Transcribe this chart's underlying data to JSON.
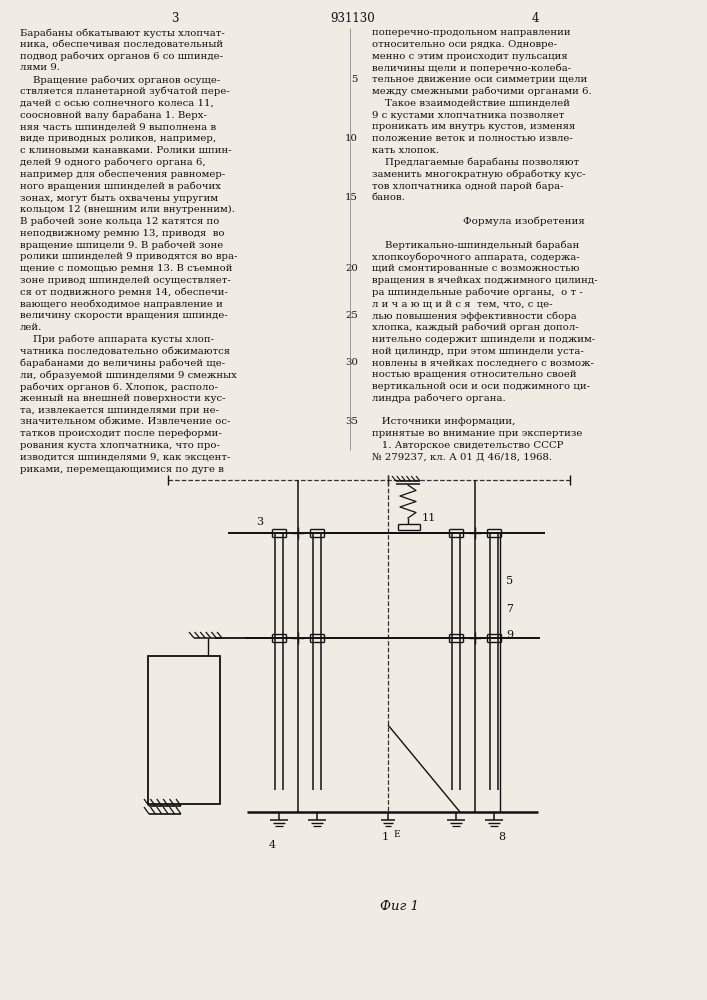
{
  "bg_color": "#f0ece4",
  "text_color": "#1a1a1a",
  "title_patent": "931130",
  "col_left_header": "3",
  "col_right_header": "4",
  "left_text": [
    "Барабаны обкатывают кусты хлопчат-",
    "ника, обеспечивая последовательный",
    "подвод рабочих органов 6 со шпинде-",
    "лями 9.",
    "    Вращение рабочих органов осуще-",
    "ствляется планетарной зубчатой пере-",
    "дачей с осью солнечного колеса 11,",
    "соосновной валу барабана 1. Верх-",
    "няя часть шпинделей 9 выполнена в",
    "виде приводных роликов, например,",
    "с клиновыми канавками. Ролики шпин-",
    "делей 9 одного рабочего органа 6,",
    "например для обеспечения равномер-",
    "ного вращения шпинделей в рабочих",
    "зонах, могут быть охвачены упругим",
    "кольцом 12 (внешним или внутренним).",
    "В рабочей зоне кольца 12 катятся по",
    "неподвижному ремню 13, приводя  во",
    "вращение шпицели 9. В рабочей зоне",
    "ролики шпинделей 9 приводятся во вра-",
    "щение с помощью ремня 13. В съемной",
    "зоне привод шпинделей осуществляет-",
    "ся от подвижного ремня 14, обеспечи-",
    "вающего необходимое направление и",
    "величину скорости вращения шпинде-",
    "лей.",
    "    При работе аппарата кусты хлоп-",
    "чатника последовательно обжимаются",
    "барабанами до величины рабочей ще-",
    "ли, образуемой шпинделями 9 смежных",
    "рабочих органов 6. Хлопок, располо-",
    "женный на внешней поверхности кус-",
    "та, извлекается шпинделями при не-",
    "значительном обжиме. Извлечение ос-",
    "татков происходит после переформи-",
    "рования куста хлопчатника, что про-",
    "изводится шпинделями 9, как эксцент-",
    "риками, перемещающимися по дуге в"
  ],
  "right_text_lines": [
    [
      "",
      "поперечно-продольном направлении"
    ],
    [
      "",
      "относительно оси рядка. Одновре-"
    ],
    [
      "",
      "менно с этим происходит пульсация"
    ],
    [
      "",
      "величины щели и поперечно-колеба-"
    ],
    [
      "5",
      "тельное движение оси симметрии щели"
    ],
    [
      "",
      "между смежными рабочими органами 6."
    ],
    [
      "",
      "    Такое взаимодействие шпинделей"
    ],
    [
      "",
      "9 с кустами хлопчатника позволяет"
    ],
    [
      "",
      "проникать им внутрь кустов, изменяя"
    ],
    [
      "10",
      "положение веток и полностью извле-"
    ],
    [
      "",
      "кать хлопок."
    ],
    [
      "",
      "    Предлагаемые барабаны позволяют"
    ],
    [
      "",
      "заменить многократную обработку кус-"
    ],
    [
      "",
      "тов хлопчатника одной парой бара-"
    ],
    [
      "15",
      "банов."
    ],
    [
      "",
      ""
    ],
    [
      "",
      "Формула изобретения"
    ],
    [
      "",
      ""
    ],
    [
      "",
      "    Вертикально-шпиндельный барабан"
    ],
    [
      "",
      "хлопкоуборочного аппарата, содержа-"
    ],
    [
      "20",
      "щий смонтированные с возможностью"
    ],
    [
      "",
      "вращения в ячейках поджимного цилинд-"
    ],
    [
      "",
      "ра шпиндельные рабочие органы,  о т -"
    ],
    [
      "",
      "л и ч а ю щ и й с я  тем, что, с це-"
    ],
    [
      "25",
      "лью повышения эффективности сбора"
    ],
    [
      "",
      "хлопка, каждый рабочий орган допол-"
    ],
    [
      "",
      "нительно содержит шпиндели и поджим-"
    ],
    [
      "",
      "ной цилиндр, при этом шпиндели уста-"
    ],
    [
      "30",
      "новлены в ячейках последнего с возмож-"
    ],
    [
      "",
      "ностью вращения относительно своей"
    ],
    [
      "",
      "вертикальной оси и оси поджимного ци-"
    ],
    [
      "",
      "линдра рабочего органа."
    ],
    [
      "",
      ""
    ],
    [
      "35",
      "   Источники информации,"
    ],
    [
      "",
      "принятые во внимание при экспертизе"
    ],
    [
      "",
      "   1. Авторское свидетельство СССР"
    ],
    [
      "",
      "№ 279237, кл. А 01 Д 46/18, 1968."
    ]
  ],
  "fig_caption": "Фиг 1"
}
